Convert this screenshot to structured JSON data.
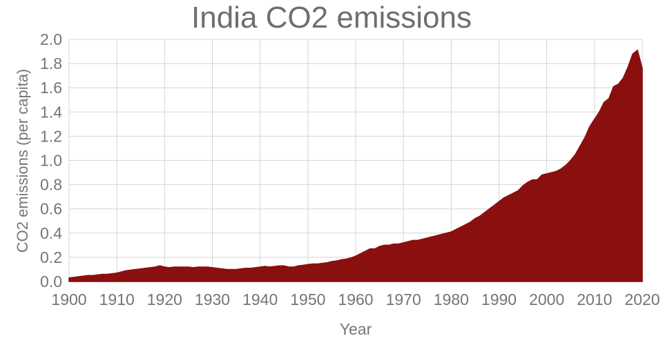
{
  "title": "India CO2 emissions",
  "colors": {
    "area": "#8a0f0f",
    "grid": "#d4d4d4",
    "text": "#757575",
    "title_text": "#6e6e6e",
    "background": "#ffffff"
  },
  "chart_data": {
    "type": "area",
    "title": "India CO2 emissions",
    "xlabel": "Year",
    "ylabel": "CO2 emissions (per capita)",
    "xlim": [
      1900,
      2020
    ],
    "ylim": [
      0.0,
      2.0
    ],
    "grid": true,
    "legend": false,
    "x_ticks": [
      1900,
      1910,
      1920,
      1930,
      1940,
      1950,
      1960,
      1970,
      1980,
      1990,
      2000,
      2010,
      2020
    ],
    "x_tick_labels": [
      "1900",
      "1910",
      "1920",
      "1930",
      "1940",
      "1950",
      "1960",
      "1970",
      "1980",
      "1990",
      "2000",
      "2010",
      "2020"
    ],
    "y_ticks": [
      0.0,
      0.2,
      0.4,
      0.6,
      0.8,
      1.0,
      1.2,
      1.4,
      1.6,
      1.8,
      2.0
    ],
    "y_tick_labels": [
      "0.0",
      "0.2",
      "0.4",
      "0.6",
      "0.8",
      "1.0",
      "1.2",
      "1.4",
      "1.6",
      "1.8",
      "2.0"
    ],
    "series": [
      {
        "name": "India CO2 emissions per capita",
        "x": [
          1900,
          1901,
          1902,
          1903,
          1904,
          1905,
          1906,
          1907,
          1908,
          1909,
          1910,
          1911,
          1912,
          1913,
          1914,
          1915,
          1916,
          1917,
          1918,
          1919,
          1920,
          1921,
          1922,
          1923,
          1924,
          1925,
          1926,
          1927,
          1928,
          1929,
          1930,
          1931,
          1932,
          1933,
          1934,
          1935,
          1936,
          1937,
          1938,
          1939,
          1940,
          1941,
          1942,
          1943,
          1944,
          1945,
          1946,
          1947,
          1948,
          1949,
          1950,
          1951,
          1952,
          1953,
          1954,
          1955,
          1956,
          1957,
          1958,
          1959,
          1960,
          1961,
          1962,
          1963,
          1964,
          1965,
          1966,
          1967,
          1968,
          1969,
          1970,
          1971,
          1972,
          1973,
          1974,
          1975,
          1976,
          1977,
          1978,
          1979,
          1980,
          1981,
          1982,
          1983,
          1984,
          1985,
          1986,
          1987,
          1988,
          1989,
          1990,
          1991,
          1992,
          1993,
          1994,
          1995,
          1996,
          1997,
          1998,
          1999,
          2000,
          2001,
          2002,
          2003,
          2004,
          2005,
          2006,
          2007,
          2008,
          2009,
          2010,
          2011,
          2012,
          2013,
          2014,
          2015,
          2016,
          2017,
          2018,
          2019,
          2020
        ],
        "values": [
          0.03,
          0.035,
          0.04,
          0.045,
          0.05,
          0.05,
          0.055,
          0.06,
          0.06,
          0.065,
          0.07,
          0.08,
          0.09,
          0.095,
          0.1,
          0.105,
          0.11,
          0.115,
          0.12,
          0.13,
          0.12,
          0.115,
          0.12,
          0.12,
          0.12,
          0.12,
          0.115,
          0.12,
          0.12,
          0.12,
          0.115,
          0.11,
          0.105,
          0.1,
          0.1,
          0.1,
          0.105,
          0.11,
          0.11,
          0.115,
          0.12,
          0.125,
          0.12,
          0.125,
          0.13,
          0.13,
          0.12,
          0.12,
          0.13,
          0.135,
          0.14,
          0.145,
          0.145,
          0.15,
          0.155,
          0.165,
          0.17,
          0.18,
          0.185,
          0.195,
          0.21,
          0.23,
          0.25,
          0.27,
          0.27,
          0.29,
          0.3,
          0.3,
          0.31,
          0.31,
          0.32,
          0.33,
          0.34,
          0.34,
          0.35,
          0.36,
          0.37,
          0.38,
          0.39,
          0.4,
          0.41,
          0.43,
          0.45,
          0.47,
          0.49,
          0.52,
          0.54,
          0.57,
          0.6,
          0.63,
          0.66,
          0.69,
          0.71,
          0.73,
          0.75,
          0.79,
          0.82,
          0.84,
          0.84,
          0.88,
          0.89,
          0.9,
          0.91,
          0.93,
          0.96,
          1.0,
          1.05,
          1.12,
          1.19,
          1.28,
          1.34,
          1.4,
          1.48,
          1.51,
          1.61,
          1.63,
          1.68,
          1.77,
          1.88,
          1.91,
          1.76
        ]
      }
    ]
  }
}
